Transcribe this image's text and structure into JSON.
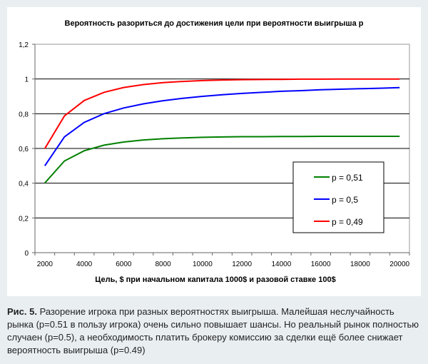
{
  "chart_data": {
    "type": "line",
    "title": "Вероятность разориться до достижения цели при вероятности выигрыша p",
    "xlabel": "Цель, $ при начальном капитала 1000$ и разовой ставке 100$",
    "ylabel": "",
    "ylim": [
      0,
      1.2
    ],
    "yticks": [
      "0",
      "0,2",
      "0,4",
      "0,6",
      "0,8",
      "1",
      "1,2"
    ],
    "ytick_values": [
      0,
      0.2,
      0.4,
      0.6,
      0.8,
      1,
      1.2
    ],
    "xtick_labels": [
      "2000",
      "4000",
      "6000",
      "8000",
      "10000",
      "12000",
      "14000",
      "16000",
      "18000",
      "20000"
    ],
    "x": [
      2000,
      3000,
      4000,
      5000,
      6000,
      7000,
      8000,
      9000,
      10000,
      11000,
      12000,
      13000,
      14000,
      15000,
      16000,
      17000,
      18000,
      19000,
      20000
    ],
    "grid": true,
    "legend_position": "right",
    "series": [
      {
        "name": "p = 0,51",
        "color": "#008000",
        "values": [
          0.401,
          0.528,
          0.587,
          0.619,
          0.637,
          0.649,
          0.656,
          0.661,
          0.664,
          0.666,
          0.668,
          0.668,
          0.669,
          0.669,
          0.67,
          0.67,
          0.67,
          0.67,
          0.67
        ]
      },
      {
        "name": "p = 0,5",
        "color": "#0000ff",
        "values": [
          0.5,
          0.667,
          0.75,
          0.8,
          0.833,
          0.857,
          0.875,
          0.889,
          0.9,
          0.909,
          0.917,
          0.923,
          0.929,
          0.933,
          0.938,
          0.941,
          0.944,
          0.947,
          0.95
        ]
      },
      {
        "name": "p = 0,49",
        "color": "#ff0000",
        "values": [
          0.599,
          0.788,
          0.876,
          0.923,
          0.951,
          0.968,
          0.979,
          0.986,
          0.991,
          0.994,
          0.996,
          0.997,
          0.998,
          0.999,
          0.999,
          1.0,
          1.0,
          1.0,
          1.0
        ]
      }
    ]
  },
  "caption": {
    "label": "Рис. 5.",
    "text": " Разорение игрока при разных вероятностях выигрыша. Малейшая неслучайность рынка (p=0.51 в пользу игрока) очень сильно повышает шансы. Но реальный рынок полностью случаен (p=0.5), а необходимость платить брокеру комиссию за сделки ещё более снижает вероятность выигрыша (p=0.49)"
  }
}
